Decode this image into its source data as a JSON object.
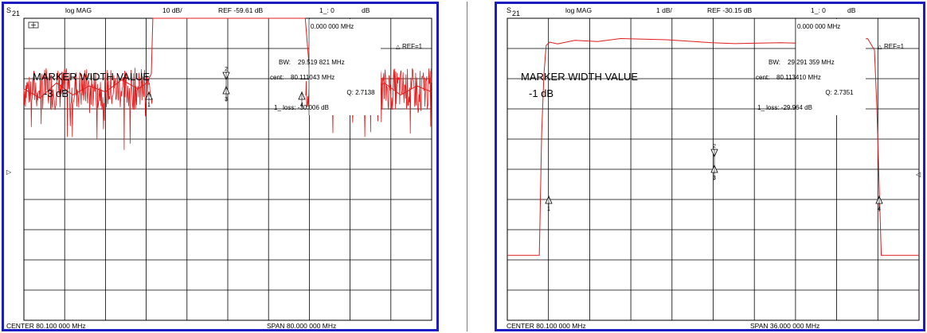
{
  "panels": [
    {
      "param_prefix": "S",
      "param_index": "21",
      "format": "log MAG",
      "scale": "10 dB/",
      "ref": "REF -59.61 dB",
      "ch_label": "1_: 0",
      "ch_unit": "dB",
      "corner_icon": "marker-table-icon",
      "marker_freq": "0.000 000 MHz",
      "ref_marker": "REF=1",
      "bw_label": "BW:",
      "bw_value": "29.519 821 MHz",
      "cent_label": "cent:",
      "cent_value": "80.111043 MHz",
      "q_label": "Q: 2.7138",
      "loss_label": "1_ loss: -30.006 dB",
      "annotation_title": "MARKER WIDTH VALUE",
      "annotation_value": "-3 dB",
      "center": "CENTER  80.100 000 MHz",
      "span": "SPAN  80.000 000 MHz",
      "trace_color": "#e11b1b"
    },
    {
      "param_prefix": "S",
      "param_index": "21",
      "format": "log MAG",
      "scale": "1 dB/",
      "ref": "REF -30.15 dB",
      "ch_label": "1_: 0",
      "ch_unit": "dB",
      "marker_freq": "0.000 000 MHz",
      "ref_marker": "REF=1",
      "bw_label": "BW:",
      "bw_value": "29.291 359 MHz",
      "cent_label": "cent:",
      "cent_value": "80.113410 MHz",
      "q_label": "Q: 2.7351",
      "loss_label": "1_ loss: -29.964 dB",
      "annotation_title": "MARKER WIDTH VALUE",
      "annotation_value": "-1 dB",
      "center": "CENTER  80.100 000 MHz",
      "span": "SPAN  36.000 000 MHz",
      "trace_color": "#e11b1b"
    }
  ],
  "chart_data": [
    {
      "type": "line",
      "x_center_mhz": 80.1,
      "x_span_mhz": 80,
      "x_range_mhz": [
        40.1,
        120.1
      ],
      "y_scale_db_per_div": 10,
      "y_ref_db": -59.61,
      "x_divisions": 10,
      "y_divisions": 10,
      "grid": true,
      "series": [
        {
          "x": [
            40.1,
            43.3,
            46.5,
            49.7,
            52.9,
            56.1,
            59.3,
            62.5,
            64.2,
            65.1,
            65.4,
            66.0,
            67.0,
            70.0,
            75.0,
            80.0,
            85.0,
            90.0,
            93.0,
            94.2,
            94.8,
            95.3,
            96.2,
            98.0,
            101.2,
            104.4,
            107.6,
            110.8,
            114.0,
            117.2,
            120.1
          ],
          "y": [
            -73,
            -76,
            -71,
            -75,
            -72,
            -74,
            -70,
            -73,
            -71,
            -68,
            -40,
            -30.5,
            -30.1,
            -30.0,
            -30.0,
            -30.0,
            -30.0,
            -30.0,
            -30.0,
            -30.1,
            -30.8,
            -45,
            -68,
            -71,
            -75,
            -72,
            -74,
            -71,
            -75,
            -72,
            -74
          ]
        }
      ],
      "markers": [
        "1",
        "2",
        "3",
        "4"
      ]
    },
    {
      "type": "line",
      "x_center_mhz": 80.1,
      "x_span_mhz": 36,
      "x_range_mhz": [
        62.1,
        98.1
      ],
      "y_scale_db_per_div": 1,
      "y_ref_db": -30.15,
      "x_divisions": 10,
      "y_divisions": 10,
      "grid": true,
      "series": [
        {
          "x": [
            62.1,
            64.9,
            65.1,
            65.3,
            65.5,
            65.8,
            66.5,
            68.0,
            70.0,
            72.0,
            74.0,
            76.0,
            78.0,
            80.0,
            82.0,
            84.0,
            86.0,
            88.0,
            90.0,
            91.5,
            93.0,
            93.6,
            94.2,
            94.4,
            94.6,
            94.8,
            95.0,
            98.1
          ],
          "y": [
            -37.0,
            -37.0,
            -33.0,
            -31.0,
            -30.05,
            -29.94,
            -30.0,
            -29.88,
            -29.92,
            -29.82,
            -29.84,
            -29.86,
            -29.91,
            -29.96,
            -29.99,
            -29.97,
            -29.96,
            -29.98,
            -29.92,
            -30.06,
            -29.86,
            -29.82,
            -30.2,
            -32.0,
            -34.5,
            -37.0,
            -37.0,
            -37.0
          ]
        }
      ],
      "markers": [
        "1",
        "2",
        "3",
        "4"
      ]
    }
  ]
}
